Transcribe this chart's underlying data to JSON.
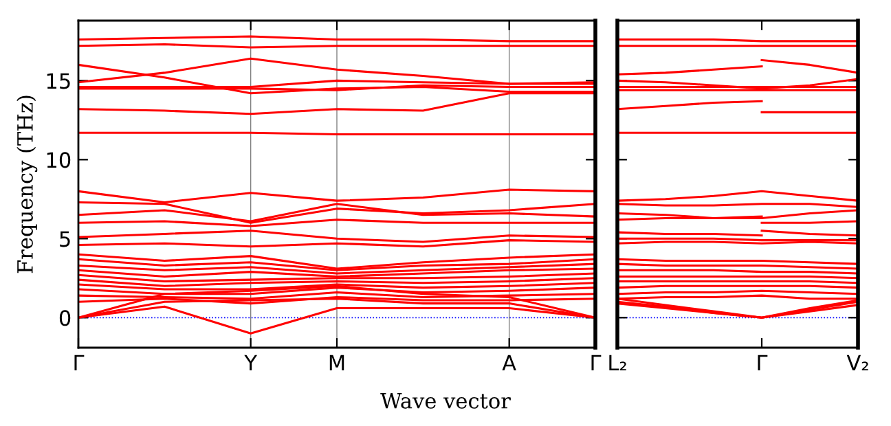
{
  "chart_data": [
    {
      "type": "line",
      "ylabel": "Frequency (THz)",
      "xlabel": "Wave vector",
      "categories": [
        "Γ",
        null,
        "Y",
        "M",
        null,
        "A",
        "Γ"
      ],
      "ylim": [
        -1.9,
        18.8
      ],
      "yticks": [
        0,
        5,
        10,
        15
      ],
      "marker": "none",
      "line_style": "solid",
      "grid": "x",
      "ref_lines": [
        {
          "axis": "y",
          "value": 0,
          "color": "#0000ff",
          "line_style": "dotted"
        }
      ],
      "series": [
        {
          "color": "#ff0000",
          "values": [
            17.6,
            17.7,
            17.8,
            17.6,
            17.6,
            17.5,
            17.5
          ]
        },
        {
          "color": "#ff0000",
          "values": [
            17.2,
            17.3,
            17.1,
            17.2,
            17.2,
            17.2,
            17.2
          ]
        },
        {
          "color": "#ff0000",
          "values": [
            16.0,
            15.2,
            14.2,
            14.5,
            14.6,
            14.3,
            14.3
          ]
        },
        {
          "color": "#ff0000",
          "values": [
            14.9,
            15.5,
            16.4,
            15.7,
            15.3,
            14.8,
            14.9
          ]
        },
        {
          "color": "#ff0000",
          "values": [
            14.6,
            14.6,
            14.6,
            15.0,
            14.9,
            14.8,
            14.8
          ]
        },
        {
          "color": "#ff0000",
          "values": [
            14.5,
            14.5,
            14.5,
            14.4,
            14.7,
            14.6,
            14.6
          ]
        },
        {
          "color": "#ff0000",
          "values": [
            13.2,
            13.1,
            12.9,
            13.2,
            13.1,
            14.2,
            14.2
          ]
        },
        {
          "color": "#ff0000",
          "values": [
            11.7,
            11.7,
            11.7,
            11.6,
            11.6,
            11.6,
            11.6
          ]
        },
        {
          "color": "#ff0000",
          "values": [
            8.0,
            7.3,
            7.9,
            7.4,
            7.6,
            8.1,
            8.0
          ]
        },
        {
          "color": "#ff0000",
          "values": [
            7.3,
            7.2,
            6.0,
            6.9,
            6.6,
            6.8,
            7.2
          ]
        },
        {
          "color": "#ff0000",
          "values": [
            6.5,
            6.8,
            6.1,
            7.2,
            6.5,
            6.6,
            6.4
          ]
        },
        {
          "color": "#ff0000",
          "values": [
            6.0,
            6.1,
            5.8,
            6.2,
            6.0,
            6.0,
            6.0
          ]
        },
        {
          "color": "#ff0000",
          "values": [
            5.1,
            5.3,
            5.5,
            5.0,
            4.8,
            5.2,
            5.1
          ]
        },
        {
          "color": "#ff0000",
          "values": [
            4.6,
            4.7,
            4.5,
            4.7,
            4.5,
            4.9,
            4.8
          ]
        },
        {
          "color": "#ff0000",
          "values": [
            4.0,
            3.6,
            3.9,
            3.1,
            3.5,
            3.8,
            4.0
          ]
        },
        {
          "color": "#ff0000",
          "values": [
            3.7,
            3.3,
            3.5,
            3.0,
            3.3,
            3.4,
            3.7
          ]
        },
        {
          "color": "#ff0000",
          "values": [
            3.3,
            3.0,
            3.2,
            2.8,
            3.0,
            3.2,
            3.4
          ]
        },
        {
          "color": "#ff0000",
          "values": [
            3.0,
            2.6,
            2.9,
            2.6,
            2.8,
            3.0,
            3.1
          ]
        },
        {
          "color": "#ff0000",
          "values": [
            2.7,
            2.3,
            2.4,
            2.5,
            2.5,
            2.6,
            2.8
          ]
        },
        {
          "color": "#ff0000",
          "values": [
            2.4,
            2.0,
            2.2,
            2.3,
            2.2,
            2.3,
            2.5
          ]
        },
        {
          "color": "#ff0000",
          "values": [
            2.1,
            1.8,
            1.8,
            2.1,
            1.9,
            2.0,
            2.2
          ]
        },
        {
          "color": "#ff0000",
          "values": [
            1.8,
            1.5,
            1.5,
            1.9,
            1.6,
            1.7,
            1.9
          ]
        },
        {
          "color": "#ff0000",
          "values": [
            1.4,
            1.3,
            1.2,
            1.6,
            1.3,
            1.4,
            1.5
          ]
        },
        {
          "color": "#ff0000",
          "values": [
            1.0,
            1.2,
            0.9,
            1.3,
            1.1,
            1.1,
            1.2
          ]
        },
        {
          "color": "#ff0000",
          "values": [
            0,
            1.5,
            1.7,
            2.0,
            1.5,
            1.3,
            0
          ]
        },
        {
          "color": "#ff0000",
          "values": [
            0,
            1.0,
            1.1,
            1.2,
            0.9,
            0.9,
            0
          ]
        },
        {
          "color": "#ff0000",
          "values": [
            0,
            0.7,
            -1.0,
            0.6,
            0.6,
            0.6,
            0
          ]
        }
      ]
    },
    {
      "type": "line",
      "categories": [
        "L₂",
        null,
        null,
        "Γ",
        null,
        "V₂"
      ],
      "ylim": [
        -1.9,
        18.8
      ],
      "yticks": [
        0,
        5,
        10,
        15
      ],
      "tick_labels": "x",
      "marker": "none",
      "line_style": "solid",
      "ref_lines": [
        {
          "axis": "y",
          "value": 0,
          "color": "#0000ff",
          "line_style": "dotted"
        }
      ],
      "series": [
        {
          "color": "#ff0000",
          "values": [
            17.6,
            17.6,
            17.6,
            17.5,
            17.5,
            17.5
          ]
        },
        {
          "color": "#ff0000",
          "values": [
            17.2,
            17.2,
            17.2,
            17.2,
            17.2,
            17.2
          ]
        },
        {
          "color": "#ff0000",
          "values": [
            15.4,
            15.5,
            15.7,
            15.9,
            null,
            null
          ]
        },
        {
          "color": "#ff0000",
          "values": [
            null,
            null,
            null,
            16.3,
            16.0,
            15.5
          ]
        },
        {
          "color": "#ff0000",
          "values": [
            15.0,
            14.9,
            14.7,
            14.5,
            14.7,
            15.1
          ]
        },
        {
          "color": "#ff0000",
          "values": [
            14.6,
            14.6,
            14.6,
            14.6,
            14.6,
            14.6
          ]
        },
        {
          "color": "#ff0000",
          "values": [
            14.4,
            14.4,
            14.4,
            14.4,
            14.4,
            14.4
          ]
        },
        {
          "color": "#ff0000",
          "values": [
            13.2,
            13.4,
            13.6,
            13.7,
            null,
            null
          ]
        },
        {
          "color": "#ff0000",
          "values": [
            null,
            null,
            null,
            13.0,
            13.0,
            13.0
          ]
        },
        {
          "color": "#ff0000",
          "values": [
            11.7,
            11.7,
            11.7,
            11.7,
            11.7,
            11.7
          ]
        },
        {
          "color": "#ff0000",
          "values": [
            7.4,
            7.5,
            7.7,
            8.0,
            7.7,
            7.4
          ]
        },
        {
          "color": "#ff0000",
          "values": [
            7.2,
            7.1,
            7.1,
            7.2,
            7.2,
            7.0
          ]
        },
        {
          "color": "#ff0000",
          "values": [
            6.6,
            6.5,
            6.3,
            6.3,
            6.6,
            6.8
          ]
        },
        {
          "color": "#ff0000",
          "values": [
            6.2,
            6.3,
            6.3,
            6.4,
            null,
            null
          ]
        },
        {
          "color": "#ff0000",
          "values": [
            null,
            null,
            null,
            6.0,
            6.0,
            6.1
          ]
        },
        {
          "color": "#ff0000",
          "values": [
            5.4,
            5.3,
            5.3,
            5.2,
            null,
            null
          ]
        },
        {
          "color": "#ff0000",
          "values": [
            null,
            null,
            null,
            5.5,
            5.3,
            5.2
          ]
        },
        {
          "color": "#ff0000",
          "values": [
            5.0,
            5.0,
            5.0,
            4.9,
            4.9,
            4.9
          ]
        },
        {
          "color": "#ff0000",
          "values": [
            4.7,
            4.8,
            4.8,
            4.7,
            4.8,
            4.7
          ]
        },
        {
          "color": "#ff0000",
          "values": [
            3.7,
            3.6,
            3.6,
            3.6,
            3.5,
            3.4
          ]
        },
        {
          "color": "#ff0000",
          "values": [
            3.4,
            3.3,
            3.3,
            3.3,
            3.2,
            3.1
          ]
        },
        {
          "color": "#ff0000",
          "values": [
            3.0,
            3.0,
            3.0,
            2.9,
            2.9,
            2.8
          ]
        },
        {
          "color": "#ff0000",
          "values": [
            2.6,
            2.6,
            2.6,
            2.6,
            2.6,
            2.5
          ]
        },
        {
          "color": "#ff0000",
          "values": [
            2.3,
            2.3,
            2.3,
            2.3,
            2.3,
            2.2
          ]
        },
        {
          "color": "#ff0000",
          "values": [
            1.9,
            2.0,
            2.0,
            2.0,
            2.0,
            1.9
          ]
        },
        {
          "color": "#ff0000",
          "values": [
            1.5,
            1.6,
            1.6,
            1.7,
            1.6,
            1.5
          ]
        },
        {
          "color": "#ff0000",
          "values": [
            1.2,
            1.3,
            1.3,
            1.4,
            1.2,
            1.2
          ]
        },
        {
          "color": "#ff0000",
          "values": [
            1.0,
            0.7,
            0.3,
            0,
            0.5,
            1.0
          ]
        },
        {
          "color": "#ff0000",
          "values": [
            1.2,
            0.8,
            0.4,
            0,
            0.6,
            1.1
          ]
        },
        {
          "color": "#ff0000",
          "values": [
            0.9,
            0.6,
            0.3,
            0,
            0.4,
            0.8
          ]
        }
      ]
    }
  ]
}
